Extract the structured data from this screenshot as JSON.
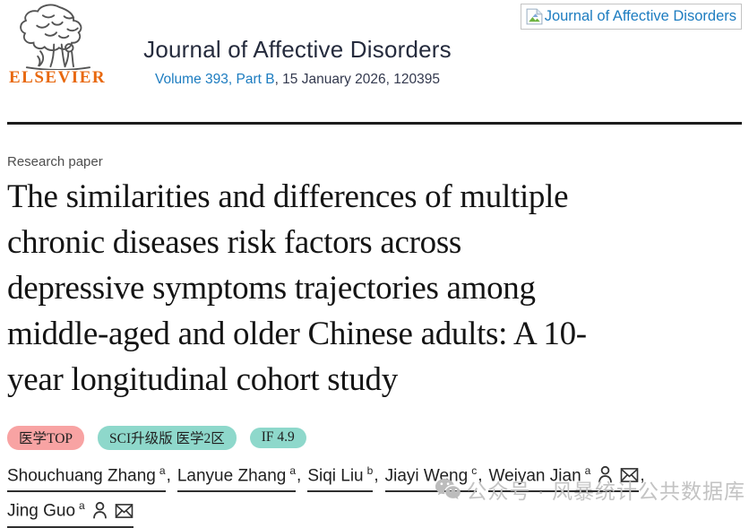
{
  "header": {
    "publisher": "ELSEVIER",
    "journal_title": "Journal of Affective Disorders",
    "volume_link": "Volume 393, Part B",
    "issue_info": ", 15 January 2026, 120395",
    "cover_box": {
      "label": "Journal of Affective Disorders"
    }
  },
  "article": {
    "type_label": "Research paper",
    "title": "The similarities and differences of multiple chronic diseases risk factors across depressive symptoms trajectories among middle-aged and older Chinese adults: A 10-year longitudinal cohort study",
    "title_lines": [
      "The similarities and differences of multiple",
      "chronic diseases risk factors across",
      "depressive symptoms trajectories among",
      "middle-aged and older Chinese adults: A 10-",
      "year longitudinal cohort study"
    ],
    "badges": [
      {
        "label": "医学TOP",
        "bg": "#f8a3a3"
      },
      {
        "label": "SCI升级版 医学2区",
        "bg": "#8ed8cb"
      },
      {
        "label": "IF 4.9",
        "bg": "#8ed8cb"
      }
    ],
    "authors": [
      {
        "name": "Shouchuang Zhang",
        "sup": "a",
        "person": false,
        "mail": false,
        "break_after": false
      },
      {
        "name": "Lanyue Zhang",
        "sup": "a",
        "person": false,
        "mail": false,
        "break_after": false
      },
      {
        "name": "Siqi Liu",
        "sup": "b",
        "person": false,
        "mail": false,
        "break_after": false
      },
      {
        "name": "Jiayi Weng",
        "sup": "c",
        "person": false,
        "mail": false,
        "break_after": false
      },
      {
        "name": "Weiyan Jian",
        "sup": "a",
        "person": true,
        "mail": true,
        "break_after": true
      },
      {
        "name": "Jing Guo",
        "sup": "a",
        "person": true,
        "mail": true,
        "break_after": false
      }
    ]
  },
  "watermark": {
    "text": "公众号 · 风暴统计公共数据库"
  },
  "colors": {
    "elsevier_orange": "#e8680e",
    "journal_navy": "#252b3d",
    "link_blue": "#1c7cc0",
    "divider_dark": "#1c1c1c",
    "badge_pink": "#f8a3a3",
    "badge_teal": "#8ed8cb",
    "watermark_gray": "#c3c3c3"
  }
}
